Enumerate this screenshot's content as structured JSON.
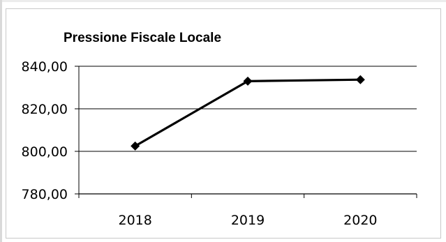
{
  "chart_data": {
    "type": "line",
    "title": "Pressione Fiscale Locale",
    "xlabel": "",
    "ylabel": "",
    "categories": [
      "2018",
      "2019",
      "2020"
    ],
    "series": [
      {
        "values": [
          802.5,
          833.0,
          833.7
        ]
      }
    ],
    "ylim": [
      780,
      840
    ],
    "yticks": [
      780,
      800,
      820,
      840
    ],
    "ytick_labels": [
      "780,00",
      "800,00",
      "820,00",
      "840,00"
    ],
    "grid": true,
    "legend": "none",
    "colors": {
      "line": "#000000",
      "grid": "#000000"
    },
    "marker": "diamond"
  }
}
